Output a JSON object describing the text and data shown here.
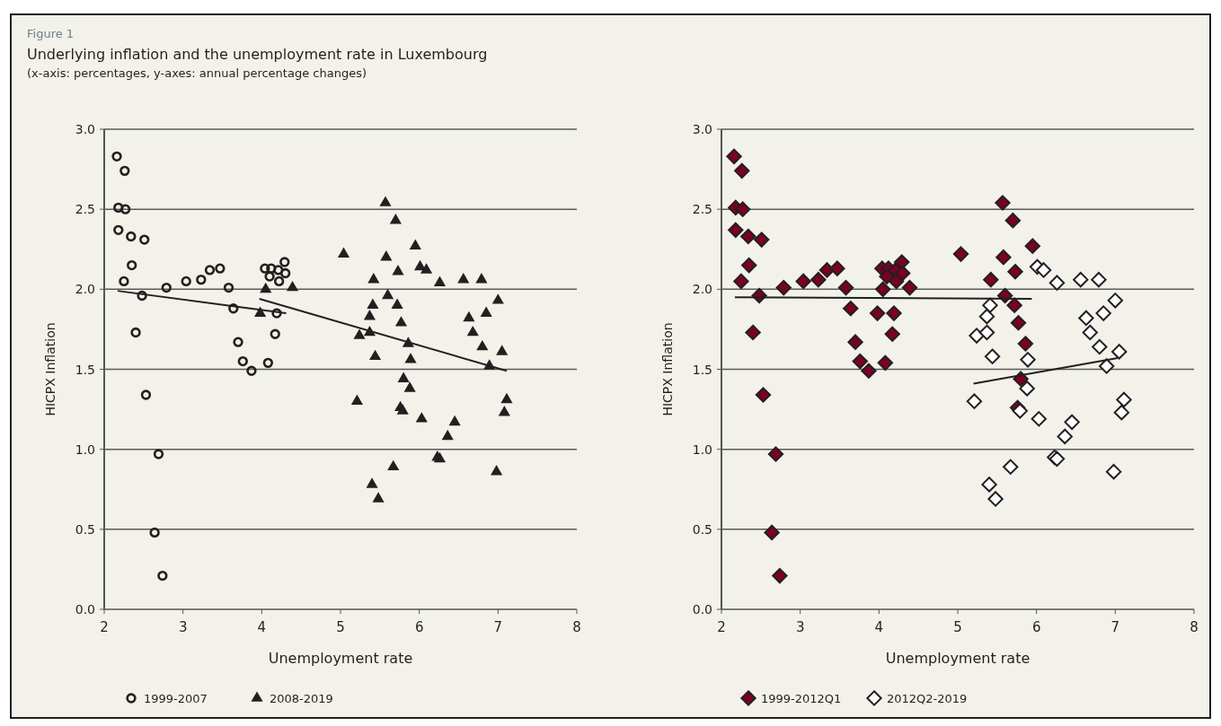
{
  "chart_data": [
    {
      "type": "scatter",
      "title": "Underlying inflation and the unemployment rate in Luxembourg",
      "subtitle": "(x-axis: percentages, y-axes: annual percentage changes)",
      "annotations": [
        "Figure 1"
      ],
      "xlabel": "Unemployment rate",
      "ylabel": "HICPX Inflation",
      "xlim": [
        2,
        8
      ],
      "ylim": [
        0,
        3
      ],
      "xticks": [
        2,
        3,
        4,
        5,
        6,
        7,
        8
      ],
      "yticks": [
        {
          "value": 0,
          "label": "0.0"
        },
        {
          "value": 0.5,
          "label": "0.5"
        },
        {
          "value": 1,
          "label": "1.0"
        },
        {
          "value": 1.5,
          "label": "1.5"
        },
        {
          "value": 2,
          "label": "2.0"
        },
        {
          "value": 2.5,
          "label": "2.5"
        },
        {
          "value": 3,
          "label": "3.0"
        }
      ],
      "grid": "y",
      "legend": "bottom left",
      "series": [
        {
          "name": "1999-2007",
          "color": "#231f20",
          "marker": "circle",
          "x": [
            2.16,
            2.26,
            2.18,
            2.27,
            2.18,
            2.34,
            2.51,
            2.35,
            2.25,
            2.48,
            2.4,
            2.53,
            2.69,
            2.64,
            2.74,
            2.79,
            3.04,
            3.23,
            3.34,
            3.47,
            3.58,
            3.64,
            3.7,
            3.76,
            3.87,
            4.08,
            4.17,
            4.19,
            4.04,
            4.12,
            4.1,
            4.21,
            4.29,
            4.3,
            4.22
          ],
          "values": [
            2.83,
            2.74,
            2.51,
            2.5,
            2.37,
            2.33,
            2.31,
            2.15,
            2.05,
            1.96,
            1.73,
            1.34,
            0.97,
            0.48,
            0.21,
            2.01,
            2.05,
            2.06,
            2.12,
            2.13,
            2.01,
            1.88,
            1.67,
            1.55,
            1.49,
            1.54,
            1.72,
            1.85,
            2.13,
            2.13,
            2.08,
            2.12,
            2.17,
            2.1,
            2.05
          ]
        },
        {
          "name": "2008-2019",
          "color": "#231f20",
          "marker": "triangle",
          "x": [
            4.05,
            4.39,
            3.98,
            5.57,
            5.7,
            5.04,
            5.95,
            5.58,
            5.73,
            6.01,
            6.09,
            5.42,
            6.26,
            6.56,
            6.79,
            5.6,
            5.41,
            5.72,
            5.37,
            5.77,
            5.24,
            5.37,
            5.86,
            5.44,
            5.89,
            7.0,
            6.85,
            6.63,
            6.68,
            6.8,
            7.05,
            6.89,
            5.8,
            5.88,
            5.21,
            5.76,
            5.79,
            7.11,
            7.08,
            6.03,
            6.45,
            6.36,
            6.23,
            6.26,
            5.67,
            6.98,
            5.4,
            5.48
          ],
          "values": [
            2.0,
            2.01,
            1.85,
            2.54,
            2.43,
            2.22,
            2.27,
            2.2,
            2.11,
            2.14,
            2.12,
            2.06,
            2.04,
            2.06,
            2.06,
            1.96,
            1.9,
            1.9,
            1.83,
            1.79,
            1.71,
            1.73,
            1.66,
            1.58,
            1.56,
            1.93,
            1.85,
            1.82,
            1.73,
            1.64,
            1.61,
            1.52,
            1.44,
            1.38,
            1.3,
            1.26,
            1.24,
            1.31,
            1.23,
            1.19,
            1.17,
            1.08,
            0.95,
            0.94,
            0.89,
            0.86,
            0.78,
            0.69
          ]
        },
        {
          "type": "line",
          "color": "#231f20",
          "marker": "none",
          "x": [
            2.17,
            4.31
          ],
          "values": [
            1.99,
            1.85
          ]
        },
        {
          "type": "line",
          "color": "#231f20",
          "marker": "none",
          "x": [
            3.97,
            7.11
          ],
          "values": [
            1.94,
            1.49
          ]
        }
      ]
    },
    {
      "type": "scatter",
      "xlabel": "Unemployment rate",
      "ylabel": "HICPX Inflation",
      "xlim": [
        2,
        8
      ],
      "ylim": [
        0,
        3
      ],
      "xticks": [
        2,
        3,
        4,
        5,
        6,
        7,
        8
      ],
      "yticks": [
        {
          "value": 0,
          "label": "0.0"
        },
        {
          "value": 0.5,
          "label": "0.5"
        },
        {
          "value": 1,
          "label": "1.0"
        },
        {
          "value": 1.5,
          "label": "1.5"
        },
        {
          "value": 2,
          "label": "2.0"
        },
        {
          "value": 2.5,
          "label": "2.5"
        },
        {
          "value": 3,
          "label": "3.0"
        }
      ],
      "grid": "y",
      "legend": "bottom left",
      "series": [
        {
          "name": "1999-2012Q1",
          "color": "#7a0026",
          "marker": "diamond",
          "x": [
            2.16,
            2.26,
            2.18,
            2.27,
            2.18,
            2.34,
            2.51,
            2.35,
            2.25,
            2.48,
            2.4,
            2.53,
            2.69,
            2.64,
            2.74,
            2.79,
            3.04,
            3.23,
            3.34,
            3.47,
            3.58,
            3.64,
            3.7,
            3.76,
            3.87,
            4.08,
            4.17,
            4.19,
            4.04,
            4.12,
            4.1,
            4.21,
            4.29,
            4.3,
            4.22,
            4.05,
            4.39,
            3.98,
            5.57,
            5.7,
            5.04,
            5.95,
            5.58,
            5.73,
            5.42,
            5.6,
            5.72,
            5.77,
            5.86,
            5.8,
            5.76
          ],
          "values": [
            2.83,
            2.74,
            2.51,
            2.5,
            2.37,
            2.33,
            2.31,
            2.15,
            2.05,
            1.96,
            1.73,
            1.34,
            0.97,
            0.48,
            0.21,
            2.01,
            2.05,
            2.06,
            2.12,
            2.13,
            2.01,
            1.88,
            1.67,
            1.55,
            1.49,
            1.54,
            1.72,
            1.85,
            2.13,
            2.13,
            2.08,
            2.12,
            2.17,
            2.1,
            2.05,
            2.0,
            2.01,
            1.85,
            2.54,
            2.43,
            2.22,
            2.27,
            2.2,
            2.11,
            2.06,
            1.96,
            1.9,
            1.79,
            1.66,
            1.44,
            1.26
          ]
        },
        {
          "name": "2012Q2-2019",
          "color": "#ffffff",
          "marker": "diamond",
          "x": [
            6.01,
            6.09,
            6.26,
            6.56,
            6.79,
            5.41,
            5.37,
            5.89,
            5.24,
            5.37,
            5.44,
            7.0,
            6.85,
            6.63,
            6.68,
            6.8,
            7.05,
            6.89,
            5.88,
            5.21,
            5.79,
            7.11,
            7.08,
            6.03,
            6.45,
            6.36,
            6.23,
            6.26,
            5.67,
            6.98,
            5.4,
            5.48
          ],
          "values": [
            2.14,
            2.12,
            2.04,
            2.06,
            2.06,
            1.9,
            1.83,
            1.56,
            1.71,
            1.73,
            1.58,
            1.93,
            1.85,
            1.82,
            1.73,
            1.64,
            1.61,
            1.52,
            1.38,
            1.3,
            1.24,
            1.31,
            1.23,
            1.19,
            1.17,
            1.08,
            0.95,
            0.94,
            0.89,
            0.86,
            0.78,
            0.69
          ]
        },
        {
          "type": "line",
          "color": "#231f20",
          "marker": "none",
          "x": [
            2.17,
            5.94
          ],
          "values": [
            1.95,
            1.94
          ]
        },
        {
          "type": "line",
          "color": "#231f20",
          "marker": "none",
          "x": [
            5.2,
            7.03
          ],
          "values": [
            1.41,
            1.57
          ]
        }
      ]
    }
  ]
}
